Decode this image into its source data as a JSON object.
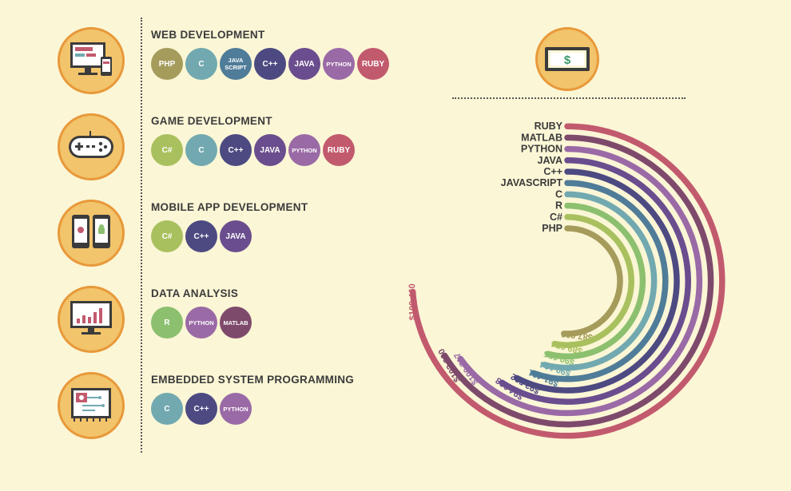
{
  "categories": [
    {
      "title": "WEB DEVELOPMENT",
      "icon": "monitor-web-icon",
      "langs": [
        "PHP",
        "C",
        "JAVA SCRIPT",
        "C++",
        "JAVA",
        "PYTHON",
        "RUBY"
      ]
    },
    {
      "title": "GAME DEVELOPMENT",
      "icon": "gamepad-icon",
      "langs": [
        "C#",
        "C",
        "C++",
        "JAVA",
        "PYTHON",
        "RUBY"
      ]
    },
    {
      "title": "MOBILE APP DEVELOPMENT",
      "icon": "mobile-phones-icon",
      "langs": [
        "C#",
        "C++",
        "JAVA"
      ]
    },
    {
      "title": "DATA ANALYSIS",
      "icon": "bar-chart-monitor-icon",
      "langs": [
        "R",
        "PYTHON",
        "MATLAB"
      ]
    },
    {
      "title": "EMBEDDED SYSTEM PROGRAMMING",
      "icon": "circuit-board-icon",
      "langs": [
        "C",
        "C++",
        "PYTHON"
      ]
    }
  ],
  "lang_colors": {
    "PHP": "#a59b5b",
    "C": "#72a9b0",
    "JAVA SCRIPT": "#4f7c98",
    "C++": "#4d4a82",
    "JAVA": "#6a4d8e",
    "PYTHON": "#9a6aa6",
    "RUBY": "#c25a6e",
    "C#": "#a9c05e",
    "R": "#8cc06f",
    "MATLAB": "#7e4a6c"
  },
  "money_icon": "dollar-bill-icon",
  "chart_data": {
    "type": "radial-bar",
    "categories": [
      "PHP",
      "C#",
      "R",
      "C",
      "JAVASCRIPT",
      "C++",
      "JAVA",
      "PYTHON",
      "MATLAB",
      "RUBY"
    ],
    "values": [
      87000,
      89074,
      90055,
      90134,
      91461,
      93502,
      94908,
      100717,
      102000,
      109460
    ],
    "value_labels": [
      "$87,000",
      "$89,074",
      "$90,055",
      "$90,134",
      "$91,461",
      "$93,502",
      "$94,908",
      "$100,717",
      "$102,000",
      "$109,460"
    ],
    "colors": [
      "#a59b5b",
      "#a9c05e",
      "#8cc06f",
      "#72a9b0",
      "#4f7c98",
      "#4d4a82",
      "#6a4d8e",
      "#9a6aa6",
      "#7e4a6c",
      "#c25a6e"
    ]
  }
}
